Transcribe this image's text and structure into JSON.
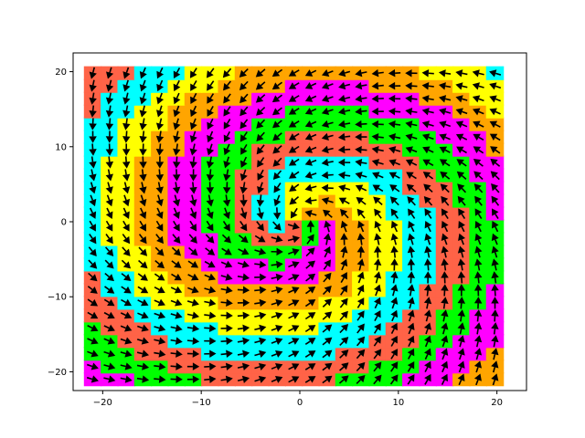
{
  "chart_data": {
    "type": "quiver",
    "title": "",
    "xlabel": "",
    "ylabel": "",
    "xlim": [
      -23,
      23
    ],
    "ylim": [
      -22.5,
      22.5
    ],
    "grid": false,
    "x_ticks": [
      -20,
      -10,
      0,
      10,
      20
    ],
    "y_ticks": [
      -20,
      -10,
      0,
      10,
      20
    ],
    "x_tick_labels": [
      "−20",
      "−10",
      "0",
      "10",
      "20"
    ],
    "y_tick_labels": [
      "−20",
      "−10",
      "0",
      "10",
      "20"
    ],
    "grid_x": {
      "start": -21,
      "stop": 21,
      "step": 1.7
    },
    "grid_y": {
      "start": -21,
      "stop": 21,
      "step": 1.7
    },
    "vector_field": {
      "spiral": "counter-clockwise",
      "inward_component": 0.55
    },
    "region_colors": [
      "#ff00ff",
      "#ffa500",
      "#ffff00",
      "#00ffff",
      "#ff6347",
      "#00ff00"
    ],
    "marker_color": "#000000",
    "axes_color": "#000000",
    "background": "#ffffff"
  }
}
